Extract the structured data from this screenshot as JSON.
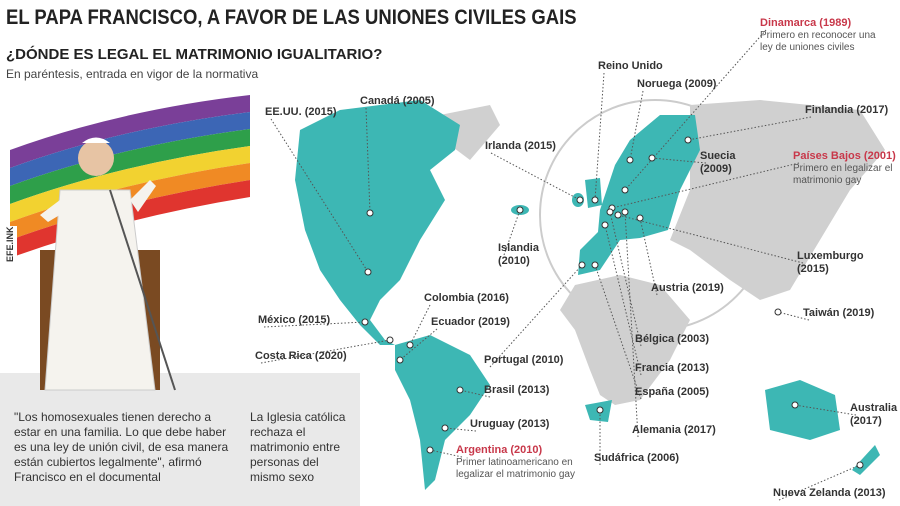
{
  "header": {
    "title": "EL PAPA FRANCISCO, A FAVOR DE LAS UNIONES CIVILES GAIS",
    "subtitle": "¿DÓNDE ES LEGAL EL MATRIMONIO IGUALITARIO?",
    "note": "En paréntesis, entrada en vigor de la normativa"
  },
  "credit": "EFE.INK",
  "countries": [
    {
      "label": "EE.UU. (2015)"
    },
    {
      "label": "Canadá (2005)"
    },
    {
      "label": "Irlanda (2015)"
    },
    {
      "label": "Islandia (2010)"
    },
    {
      "label": "Reino Unido"
    },
    {
      "label": "Noruega (2009)"
    },
    {
      "label": "Dinamarca (1989)",
      "note": "Primero en reconocer una ley de uniones civiles"
    },
    {
      "label": "Finlandia (2017)"
    },
    {
      "label": "Suecia (2009)"
    },
    {
      "label": "Países Bajos (2001)",
      "note": "Primero en legalizar el matrimonio gay"
    },
    {
      "label": "Luxemburgo (2015)"
    },
    {
      "label": "Austria (2019)"
    },
    {
      "label": "Taiwán (2019)"
    },
    {
      "label": "México (2015)"
    },
    {
      "label": "Colombia (2016)"
    },
    {
      "label": "Ecuador (2019)"
    },
    {
      "label": "Costa Rica (2020)"
    },
    {
      "label": "Portugal (2010)"
    },
    {
      "label": "Brasil (2013)"
    },
    {
      "label": "Bélgica (2003)"
    },
    {
      "label": "Francia (2013)"
    },
    {
      "label": "España (2005)"
    },
    {
      "label": "Uruguay (2013)"
    },
    {
      "label": "Alemania (2017)"
    },
    {
      "label": "Argentina (2010)",
      "note": "Primer latinoamericano en legalizar el matrimonio gay"
    },
    {
      "label": "Sudáfrica (2006)"
    },
    {
      "label": "Australia (2017)"
    },
    {
      "label": "Nueva Zelanda (2013)"
    }
  ],
  "quotes": [
    "\"Los homosexuales tienen derecho a estar en una familia. Lo que debe haber es una ley de unión civil, de esa manera están cubiertos legalmente\", afirmó Francisco en el documental",
    "La Iglesia católica rechaza el matrimonio entre personas del mismo sexo"
  ]
}
